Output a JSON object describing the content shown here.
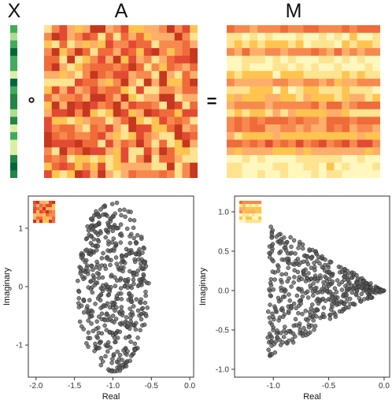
{
  "top": {
    "label_x": "X",
    "label_a": "A",
    "label_m": "M",
    "op_hadamard": "∘",
    "op_equals": "="
  },
  "palette": {
    "heat": [
      "#fff7bc",
      "#fee391",
      "#fec44f",
      "#fdae6b",
      "#f7894f",
      "#f06b3a",
      "#e34a33",
      "#c6371f"
    ],
    "green": [
      "#f7fcb9",
      "#d9f0a3",
      "#addd8e",
      "#78c679",
      "#41ab5d",
      "#238443",
      "#006837"
    ],
    "point": "#5a5a5a",
    "point_stroke": "#222222"
  },
  "chart_data": [
    {
      "type": "scatter",
      "panel": "left",
      "xlabel": "Real",
      "ylabel": "Imaginary",
      "xlim": [
        -2.1,
        0.05
      ],
      "ylim": [
        -1.55,
        1.55
      ],
      "xticks": [
        -2.0,
        -1.5,
        -1.0,
        -0.5,
        0.0
      ],
      "xtick_labels": [
        "-2.0",
        "-1.5",
        "-1.0",
        "-0.5",
        "0.0"
      ],
      "yticks": [
        -1,
        0,
        1
      ],
      "ytick_labels": [
        "-1",
        "0",
        "1"
      ],
      "distribution": {
        "shape": "ellipse",
        "center_x": -1.0,
        "center_y": 0.0,
        "radius_x": 0.47,
        "radius_y": 1.47,
        "count": 500
      },
      "inset": "A"
    },
    {
      "type": "scatter",
      "panel": "right",
      "xlabel": "Real",
      "ylabel": "Imaginary",
      "xlim": [
        -1.35,
        0.05
      ],
      "ylim": [
        -1.1,
        1.2
      ],
      "xticks": [
        -1.0,
        -0.5,
        0.0
      ],
      "xtick_labels": [
        "-1.0",
        "-0.5",
        "0.0"
      ],
      "yticks": [
        -1.0,
        -0.5,
        0.0,
        0.5,
        1.0
      ],
      "ytick_labels": [
        "-1.0",
        "-0.5",
        "0.0",
        "0.5",
        "1.0"
      ],
      "distribution": {
        "shape": "cone",
        "apex_x": 0.0,
        "left_x": -1.05,
        "max_half_height": 0.85,
        "count": 500
      },
      "inset": "M"
    }
  ]
}
